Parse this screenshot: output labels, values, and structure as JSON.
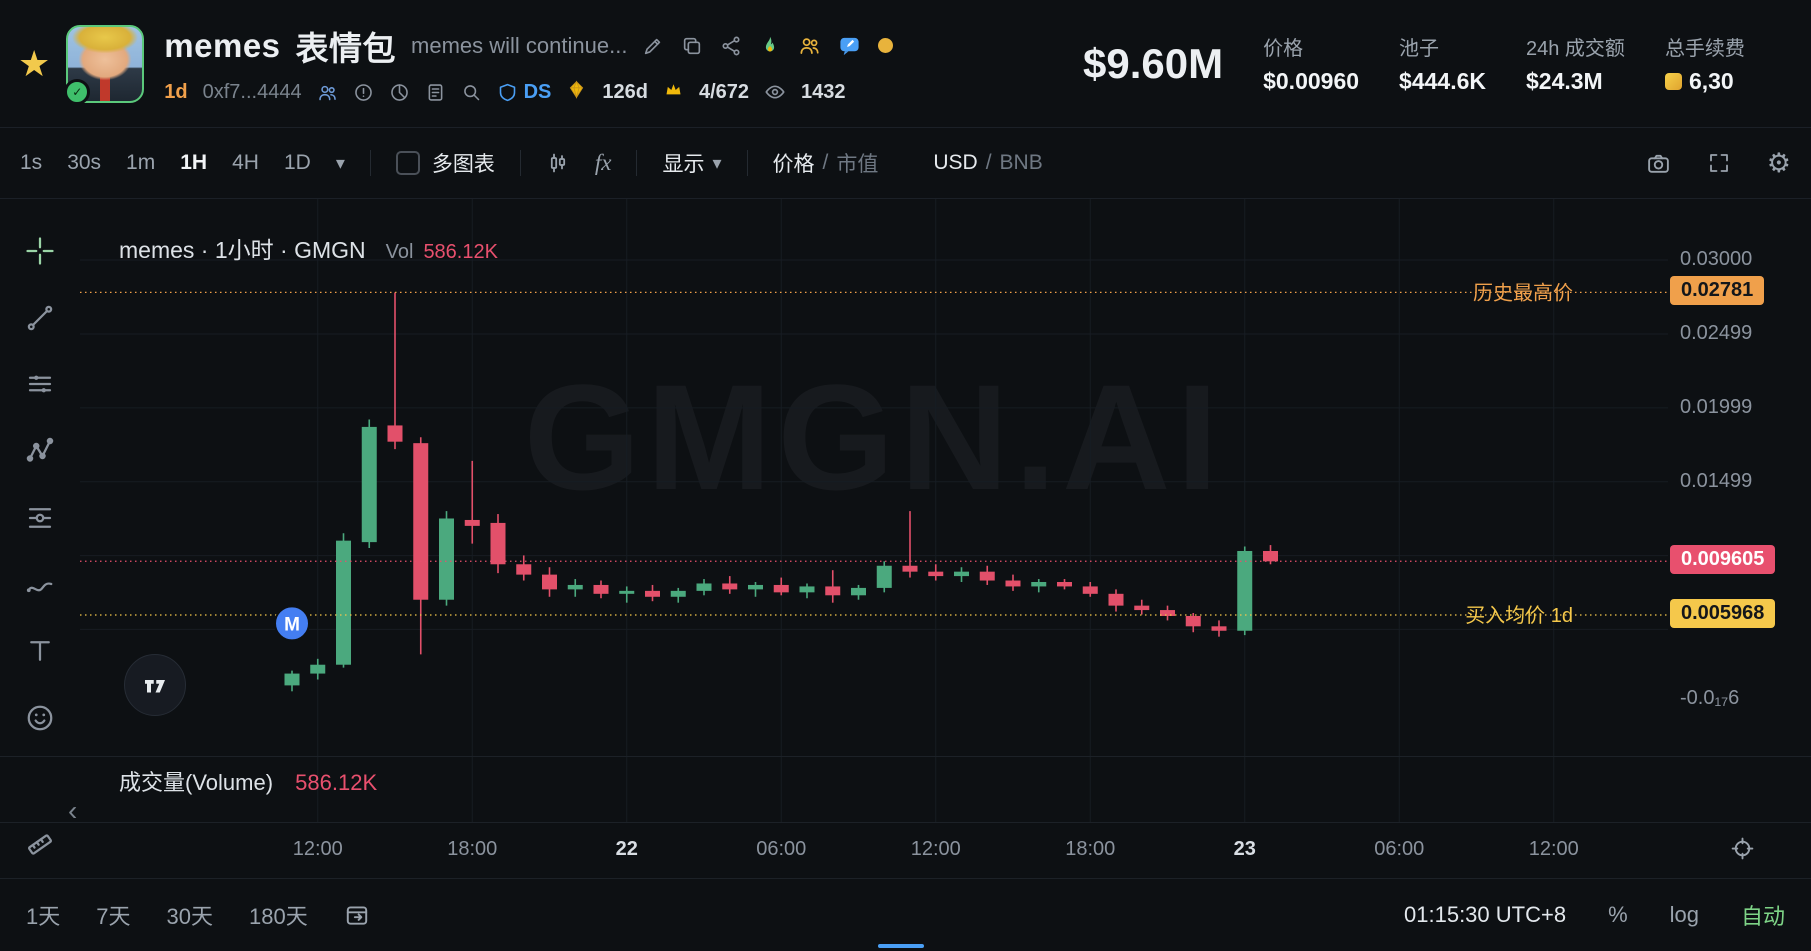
{
  "icons": {
    "star": "★",
    "gear": "⚙",
    "chevron_down": "▾",
    "collapse": "‹",
    "check": "✓"
  },
  "header": {
    "token_name": "memes",
    "token_name_cn": "表情包",
    "token_desc": "memes will continue...",
    "age": "1d",
    "contract": "0xf7...4444",
    "ds_label": "DS",
    "days_label": "126d",
    "rank": "4/672",
    "watchers": "1432",
    "market_cap": "$9.60M",
    "stats": [
      {
        "label": "价格",
        "value": "$0.00960"
      },
      {
        "label": "池子",
        "value": "$444.6K"
      },
      {
        "label": "24h 成交额",
        "value": "$24.3M"
      },
      {
        "label": "总手续费",
        "value": "6,30"
      }
    ]
  },
  "toolbar": {
    "timeframes": [
      "1s",
      "30s",
      "1m",
      "1H",
      "4H",
      "1D"
    ],
    "active_timeframe": "1H",
    "multi_chart_label": "多图表",
    "fx_label": "fx",
    "display_label": "显示",
    "price_label": "价格",
    "mcap_label": "市值",
    "currency_primary": "USD",
    "currency_secondary": "BNB"
  },
  "chart_data": {
    "type": "candlestick",
    "legend": "memes · 1小时 · GMGN",
    "vol_label": "Vol",
    "vol_value": "586.12K",
    "watermark": "GMGN.AI",
    "interval": "1H",
    "ylim": [
      -0.00358,
      0.03413
    ],
    "price_axis_labels": [
      {
        "text": "0.03000",
        "price": 0.03
      },
      {
        "text": "0.02499",
        "price": 0.02499
      },
      {
        "text": "0.01999",
        "price": 0.01999
      },
      {
        "text": "0.01499",
        "price": 0.01499
      },
      {
        "text": "-0.0₁₇6",
        "price": 0.0003
      }
    ],
    "gridline_prices": [
      0.03,
      0.02499,
      0.01999,
      0.01499,
      0.00999,
      0.00499
    ],
    "time_ticks": [
      {
        "label": "12:00",
        "index": 1
      },
      {
        "label": "18:00",
        "index": 7
      },
      {
        "label": "22",
        "index": 13,
        "major": true
      },
      {
        "label": "06:00",
        "index": 19
      },
      {
        "label": "12:00",
        "index": 25
      },
      {
        "label": "18:00",
        "index": 31
      },
      {
        "label": "23",
        "index": 37,
        "major": true
      },
      {
        "label": "06:00",
        "index": 43
      },
      {
        "label": "12:00",
        "index": 49
      }
    ],
    "candles": [
      [
        0.0012,
        0.0022,
        0.0008,
        0.002
      ],
      [
        0.002,
        0.003,
        0.0016,
        0.0026
      ],
      [
        0.0026,
        0.0115,
        0.0024,
        0.011
      ],
      [
        0.0109,
        0.0192,
        0.0105,
        0.0187
      ],
      [
        0.0188,
        0.0278,
        0.0172,
        0.0177
      ],
      [
        0.0176,
        0.018,
        0.0033,
        0.007
      ],
      [
        0.007,
        0.013,
        0.0066,
        0.0125
      ],
      [
        0.0124,
        0.0164,
        0.0108,
        0.012
      ],
      [
        0.0122,
        0.0128,
        0.0088,
        0.0094
      ],
      [
        0.0094,
        0.01,
        0.0083,
        0.0087
      ],
      [
        0.0087,
        0.0092,
        0.0072,
        0.0077
      ],
      [
        0.0077,
        0.0084,
        0.0072,
        0.008
      ],
      [
        0.008,
        0.0083,
        0.0071,
        0.0074
      ],
      [
        0.0074,
        0.0079,
        0.0068,
        0.0076
      ],
      [
        0.0076,
        0.008,
        0.0069,
        0.0072
      ],
      [
        0.0072,
        0.0078,
        0.0068,
        0.0076
      ],
      [
        0.0076,
        0.0084,
        0.0073,
        0.0081
      ],
      [
        0.0081,
        0.0086,
        0.0074,
        0.0077
      ],
      [
        0.0077,
        0.0082,
        0.0072,
        0.008
      ],
      [
        0.008,
        0.0085,
        0.0073,
        0.0075
      ],
      [
        0.0075,
        0.0081,
        0.0071,
        0.0079
      ],
      [
        0.0079,
        0.009,
        0.0068,
        0.0073
      ],
      [
        0.0073,
        0.008,
        0.007,
        0.0078
      ],
      [
        0.0078,
        0.0096,
        0.0075,
        0.0093
      ],
      [
        0.0093,
        0.013,
        0.0085,
        0.0089
      ],
      [
        0.0089,
        0.0094,
        0.0083,
        0.0086
      ],
      [
        0.0086,
        0.0092,
        0.0082,
        0.0089
      ],
      [
        0.0089,
        0.0093,
        0.008,
        0.0083
      ],
      [
        0.0083,
        0.0087,
        0.0076,
        0.0079
      ],
      [
        0.0079,
        0.0084,
        0.0075,
        0.0082
      ],
      [
        0.0082,
        0.0084,
        0.0077,
        0.0079
      ],
      [
        0.0079,
        0.0082,
        0.0072,
        0.0074
      ],
      [
        0.0074,
        0.0077,
        0.0062,
        0.0066
      ],
      [
        0.0066,
        0.007,
        0.006,
        0.0063
      ],
      [
        0.0063,
        0.0066,
        0.0056,
        0.0059
      ],
      [
        0.0059,
        0.0061,
        0.0048,
        0.0052
      ],
      [
        0.0052,
        0.0056,
        0.0045,
        0.0049
      ],
      [
        0.0049,
        0.0106,
        0.0046,
        0.0103
      ],
      [
        0.0103,
        0.0107,
        0.0094,
        0.0096
      ]
    ],
    "lines": [
      {
        "name": "ath",
        "price": 0.02781,
        "color": "#F0A04B",
        "label": "历史最高价",
        "badge": "0.02781",
        "badge_text_color": "#14161A"
      },
      {
        "name": "current",
        "price": 0.009605,
        "color": "#E8506E",
        "label": "",
        "badge": "0.009605",
        "badge_text_color": "#FFFFFF"
      },
      {
        "name": "avg_cost",
        "price": 0.005968,
        "color": "#F5C84B",
        "label": "买入均价 1d",
        "badge": "0.005968",
        "badge_text_color": "#14161A"
      }
    ],
    "marker": {
      "label": "M",
      "index": 0,
      "price": 0.0054,
      "color": "#447EF2"
    },
    "colors": {
      "up": "#4BA97E",
      "down": "#E2506A",
      "grid": "#171C23",
      "axis_text": "#8B939E"
    }
  },
  "volume": {
    "label": "成交量(Volume)",
    "value": "586.12K"
  },
  "bottom_bar": {
    "ranges": [
      "1天",
      "7天",
      "30天",
      "180天"
    ],
    "clock": "01:15:30 UTC+8",
    "percent_label": "%",
    "log_label": "log",
    "auto_label": "自动"
  }
}
